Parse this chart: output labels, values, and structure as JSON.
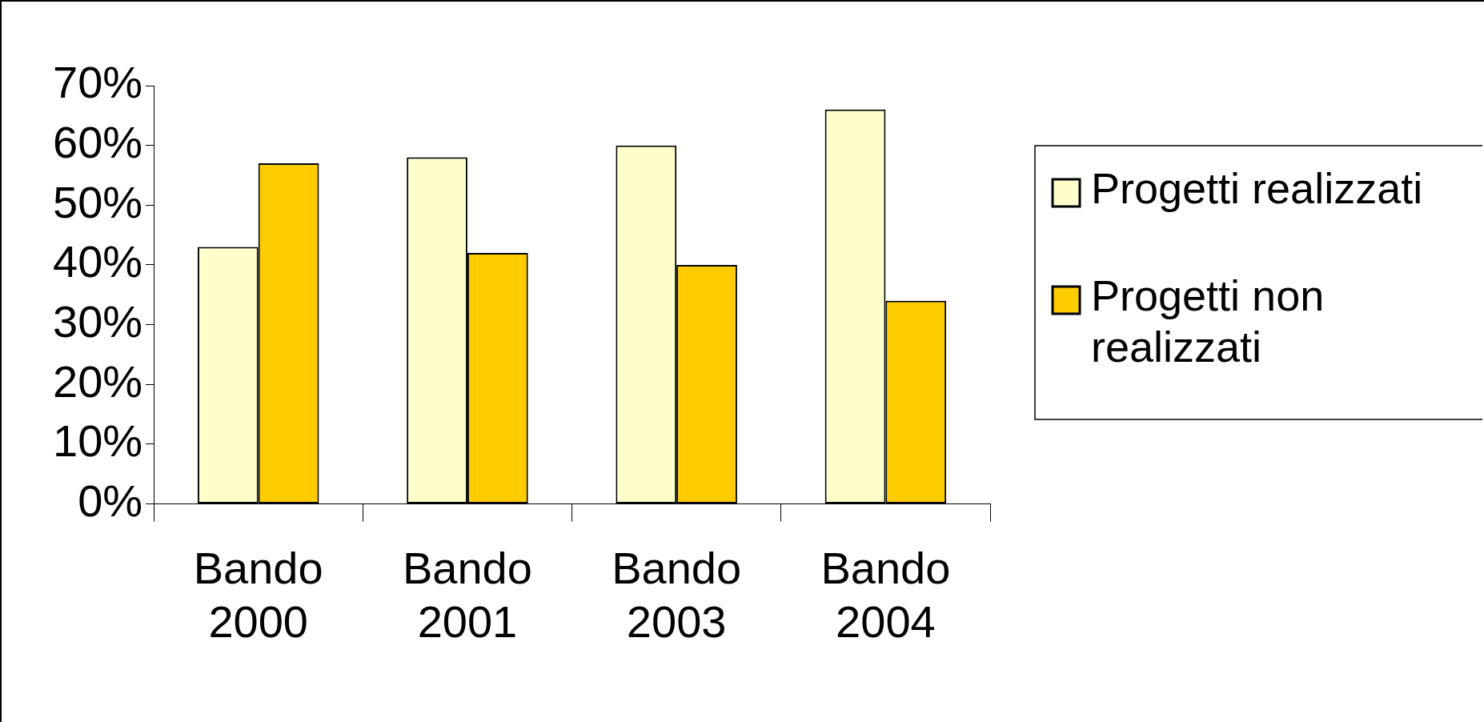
{
  "chart_data": {
    "type": "bar",
    "categories": [
      "Bando 2000",
      "Bando 2001",
      "Bando 2003",
      "Bando 2004"
    ],
    "series": [
      {
        "name": "Progetti realizzati",
        "color": "#ffffcc",
        "values": [
          43,
          58,
          60,
          66
        ]
      },
      {
        "name": "Progetti non realizzati",
        "color": "#ffcc00",
        "values": [
          57,
          42,
          40,
          34
        ]
      }
    ],
    "ylim": [
      0,
      70
    ],
    "yticks": [
      {
        "value": 0,
        "label": "0%"
      },
      {
        "value": 10,
        "label": "10%"
      },
      {
        "value": 20,
        "label": "20%"
      },
      {
        "value": 30,
        "label": "30%"
      },
      {
        "value": 40,
        "label": "40%"
      },
      {
        "value": 50,
        "label": "50%"
      },
      {
        "value": 60,
        "label": "60%"
      },
      {
        "value": 70,
        "label": "70%"
      }
    ],
    "grid": false,
    "legend": "right"
  }
}
